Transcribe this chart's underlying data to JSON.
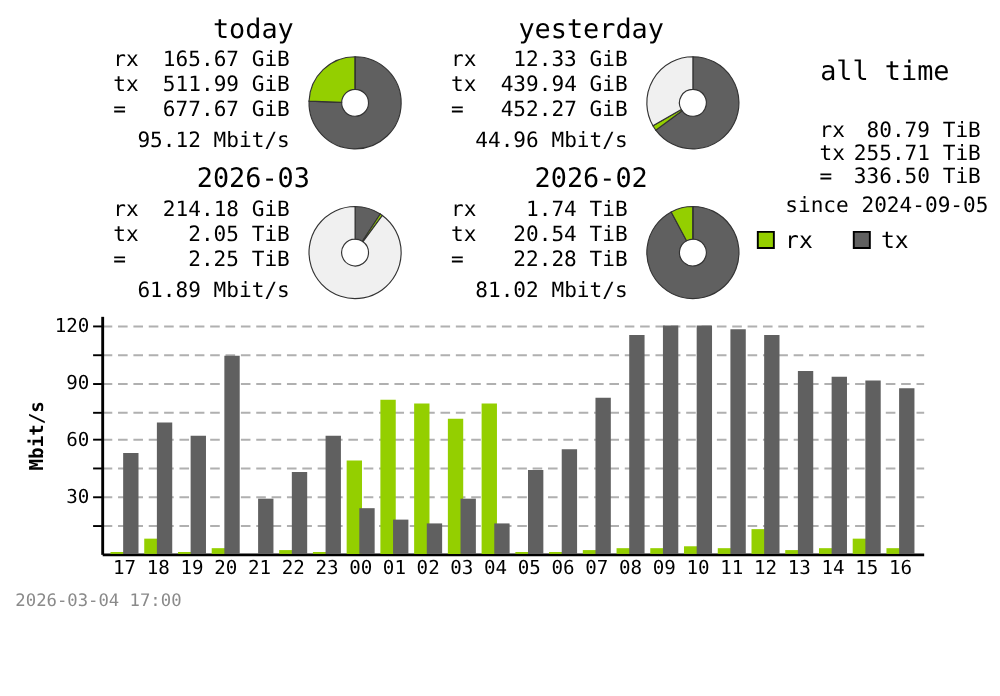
{
  "chart_data": [
    {
      "type": "donut",
      "title": "today",
      "categories": [
        null,
        null,
        null
      ],
      "values": [
        75.6,
        24.4,
        0
      ],
      "colors": [
        "#606060",
        "#94cf00",
        "#f0f0f0"
      ],
      "annotations": [
        "rx",
        "165.67 GiB",
        "tx",
        "511.99 GiB",
        "=",
        "677.67 GiB",
        "95.12 Mbit/s"
      ]
    },
    {
      "type": "donut",
      "title": "yesterday",
      "categories": [
        null,
        null,
        null
      ],
      "values": [
        64.9,
        1.8,
        33.3
      ],
      "colors": [
        "#606060",
        "#94cf00",
        "#f0f0f0"
      ],
      "annotations": [
        "rx",
        "12.33 GiB",
        "tx",
        "439.94 GiB",
        "=",
        "452.27 GiB",
        "44.96 Mbit/s"
      ]
    },
    {
      "type": "other",
      "title": "all time",
      "annotations": [
        "rx",
        "80.79 TiB",
        "tx",
        "255.71 TiB",
        "=",
        "336.50 TiB",
        "since 2024-09-05"
      ]
    },
    {
      "type": "donut",
      "title": "2026-03",
      "categories": [
        null,
        null,
        null
      ],
      "values": [
        9.2,
        0.9,
        89.9
      ],
      "colors": [
        "#606060",
        "#94cf00",
        "#f0f0f0"
      ],
      "annotations": [
        "rx",
        "214.18 GiB",
        "tx",
        "2.05 TiB",
        "=",
        "2.25 TiB",
        "61.89 Mbit/s"
      ]
    },
    {
      "type": "donut",
      "title": "2026-02",
      "categories": [
        null,
        null,
        null
      ],
      "values": [
        92.2,
        7.8,
        0
      ],
      "colors": [
        "#606060",
        "#94cf00",
        "#f0f0f0"
      ],
      "annotations": [
        "rx",
        "1.74 TiB",
        "tx",
        "20.54 TiB",
        "=",
        "22.28 TiB",
        "81.02 Mbit/s"
      ]
    },
    {
      "type": "bar",
      "ylabel": "Mbit/s",
      "legend": "top right",
      "grid": "y",
      "categories": [
        "17",
        "18",
        "19",
        "20",
        "21",
        "22",
        "23",
        "00",
        "01",
        "02",
        "03",
        "04",
        "05",
        "06",
        "07",
        "08",
        "09",
        "10",
        "11",
        "12",
        "13",
        "14",
        "15",
        "16"
      ],
      "ylim": [
        0,
        125
      ],
      "yticks": [
        {
          "value": 15,
          "label": null
        },
        30,
        {
          "value": 45,
          "label": null
        },
        60,
        {
          "value": 75,
          "label": null
        },
        90,
        {
          "value": 105,
          "label": null
        },
        120
      ],
      "series": [
        {
          "name": "rx",
          "color": "#94cf00",
          "values": [
            1,
            8,
            1,
            3,
            0,
            2,
            1,
            49,
            81,
            79,
            71,
            79,
            1,
            1,
            2,
            3,
            3,
            4,
            3,
            13,
            2,
            3,
            8,
            3
          ]
        },
        {
          "name": "tx",
          "color": "#606060",
          "values": [
            53,
            69,
            62,
            104,
            29,
            43,
            62,
            24,
            18,
            16,
            29,
            16,
            44,
            55,
            82,
            115,
            120,
            120,
            118,
            115,
            96,
            93,
            91,
            87
          ]
        }
      ],
      "annotations": [
        "2026-03-04 17:00"
      ]
    }
  ]
}
